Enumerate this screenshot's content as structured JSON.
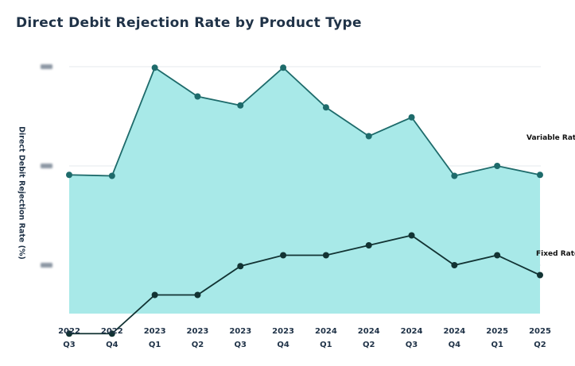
{
  "colors": {
    "title": "#1f3247",
    "area_fill": "#a8e9e8",
    "variable_line": "#1e6b6b",
    "fixed_line": "#123333",
    "grid": "#e4e8ec"
  },
  "chart_data": {
    "type": "area",
    "title": "Direct Debit Rejection Rate by Product Type",
    "ylabel": "Direct Debit  Rejection Rate (%)",
    "xlabel": "",
    "y_tick_labels_obscured": true,
    "grid": true,
    "categories": [
      [
        "2022",
        "Q3"
      ],
      [
        "2022",
        "Q4"
      ],
      [
        "2023",
        "Q1"
      ],
      [
        "2023",
        "Q2"
      ],
      [
        "2023",
        "Q3"
      ],
      [
        "2023",
        "Q4"
      ],
      [
        "2024",
        "Q1"
      ],
      [
        "2024",
        "Q2"
      ],
      [
        "2024",
        "Q3"
      ],
      [
        "2024",
        "Q4"
      ],
      [
        "2025",
        "Q1"
      ],
      [
        "2025",
        "Q2"
      ]
    ],
    "series": [
      {
        "name": "Variable Rate",
        "filled": true,
        "values": [
          2.91,
          2.9,
          3.99,
          3.7,
          3.61,
          3.99,
          3.59,
          3.3,
          3.49,
          2.9,
          3.0,
          2.91
        ]
      },
      {
        "name": "Fixed Rate",
        "filled": false,
        "values": [
          1.31,
          1.31,
          1.7,
          1.7,
          1.99,
          2.1,
          2.1,
          2.2,
          2.3,
          2.0,
          2.1,
          1.9
        ]
      }
    ]
  }
}
